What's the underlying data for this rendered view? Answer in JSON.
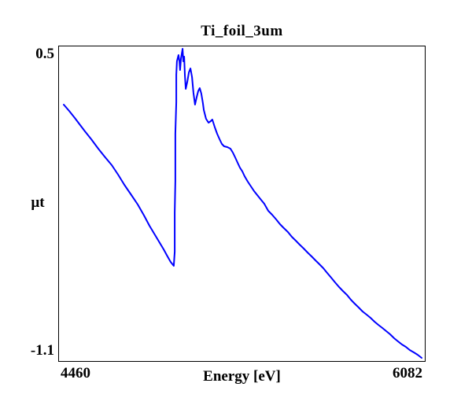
{
  "window": {
    "background": "#ffffff"
  },
  "colors": {
    "curve": "#0000ff",
    "frame": "#000000",
    "text": "#000000",
    "background": "#ffffff"
  },
  "chart_data": {
    "type": "line",
    "title": "Ti_foil_3um",
    "xlabel": "Energy [eV]",
    "ylabel": "µt",
    "xlim": [
      4460,
      6082
    ],
    "ylim": [
      -1.1,
      0.5
    ],
    "x_tick_labels": [
      "4460",
      "6082"
    ],
    "y_tick_labels": [
      "0.5",
      "-1.1"
    ],
    "grid": false,
    "legend": "none",
    "description": "Ti K-edge X-ray absorption spectrum of a 3 um Ti foil: descending pre-edge, sharp absorption edge near 4975 eV with XANES oscillations, then smooth EXAFS decay",
    "series": [
      {
        "name": "Ti_foil_3um",
        "color": "#0000ff",
        "points": [
          [
            4481,
            0.204
          ],
          [
            4505,
            0.172
          ],
          [
            4530,
            0.136
          ],
          [
            4554,
            0.1
          ],
          [
            4575,
            0.068
          ],
          [
            4603,
            0.028
          ],
          [
            4634,
            -0.02
          ],
          [
            4662,
            -0.06
          ],
          [
            4694,
            -0.104
          ],
          [
            4722,
            -0.152
          ],
          [
            4750,
            -0.204
          ],
          [
            4781,
            -0.256
          ],
          [
            4809,
            -0.304
          ],
          [
            4837,
            -0.36
          ],
          [
            4861,
            -0.412
          ],
          [
            4882,
            -0.452
          ],
          [
            4903,
            -0.492
          ],
          [
            4924,
            -0.532
          ],
          [
            4941,
            -0.568
          ],
          [
            4955,
            -0.596
          ],
          [
            4966,
            -0.612
          ],
          [
            4969,
            -0.616
          ],
          [
            4973,
            -0.544
          ],
          [
            4973,
            -0.344
          ],
          [
            4976,
            -0.184
          ],
          [
            4976,
            -0.064
          ],
          [
            4976,
            0.056
          ],
          [
            4980,
            0.216
          ],
          [
            4980,
            0.356
          ],
          [
            4983,
            0.424
          ],
          [
            4990,
            0.456
          ],
          [
            4994,
            0.424
          ],
          [
            4997,
            0.38
          ],
          [
            5001,
            0.44
          ],
          [
            5008,
            0.488
          ],
          [
            5011,
            0.424
          ],
          [
            5015,
            0.448
          ],
          [
            5018,
            0.356
          ],
          [
            5022,
            0.284
          ],
          [
            5029,
            0.32
          ],
          [
            5036,
            0.368
          ],
          [
            5043,
            0.388
          ],
          [
            5050,
            0.344
          ],
          [
            5056,
            0.264
          ],
          [
            5063,
            0.204
          ],
          [
            5070,
            0.24
          ],
          [
            5077,
            0.272
          ],
          [
            5084,
            0.288
          ],
          [
            5091,
            0.26
          ],
          [
            5098,
            0.212
          ],
          [
            5102,
            0.176
          ],
          [
            5112,
            0.132
          ],
          [
            5123,
            0.112
          ],
          [
            5133,
            0.12
          ],
          [
            5140,
            0.128
          ],
          [
            5151,
            0.088
          ],
          [
            5161,
            0.056
          ],
          [
            5172,
            0.028
          ],
          [
            5182,
            0.004
          ],
          [
            5192,
            -0.008
          ],
          [
            5206,
            -0.012
          ],
          [
            5220,
            -0.02
          ],
          [
            5231,
            -0.04
          ],
          [
            5241,
            -0.064
          ],
          [
            5252,
            -0.092
          ],
          [
            5262,
            -0.116
          ],
          [
            5273,
            -0.136
          ],
          [
            5283,
            -0.16
          ],
          [
            5297,
            -0.188
          ],
          [
            5311,
            -0.212
          ],
          [
            5325,
            -0.236
          ],
          [
            5339,
            -0.256
          ],
          [
            5353,
            -0.276
          ],
          [
            5370,
            -0.3
          ],
          [
            5388,
            -0.336
          ],
          [
            5405,
            -0.356
          ],
          [
            5423,
            -0.38
          ],
          [
            5440,
            -0.404
          ],
          [
            5457,
            -0.424
          ],
          [
            5475,
            -0.444
          ],
          [
            5492,
            -0.468
          ],
          [
            5510,
            -0.488
          ],
          [
            5527,
            -0.508
          ],
          [
            5545,
            -0.528
          ],
          [
            5562,
            -0.548
          ],
          [
            5580,
            -0.568
          ],
          [
            5597,
            -0.588
          ],
          [
            5615,
            -0.608
          ],
          [
            5632,
            -0.628
          ],
          [
            5649,
            -0.652
          ],
          [
            5667,
            -0.676
          ],
          [
            5684,
            -0.7
          ],
          [
            5702,
            -0.724
          ],
          [
            5719,
            -0.744
          ],
          [
            5737,
            -0.764
          ],
          [
            5754,
            -0.788
          ],
          [
            5771,
            -0.808
          ],
          [
            5789,
            -0.828
          ],
          [
            5806,
            -0.848
          ],
          [
            5824,
            -0.864
          ],
          [
            5841,
            -0.88
          ],
          [
            5859,
            -0.9
          ],
          [
            5876,
            -0.916
          ],
          [
            5894,
            -0.932
          ],
          [
            5911,
            -0.948
          ],
          [
            5928,
            -0.964
          ],
          [
            5946,
            -0.984
          ],
          [
            5963,
            -1.0
          ],
          [
            5981,
            -1.016
          ],
          [
            5998,
            -1.028
          ],
          [
            6015,
            -1.044
          ],
          [
            6033,
            -1.056
          ],
          [
            6050,
            -1.068
          ],
          [
            6068,
            -1.084
          ]
        ]
      }
    ]
  }
}
